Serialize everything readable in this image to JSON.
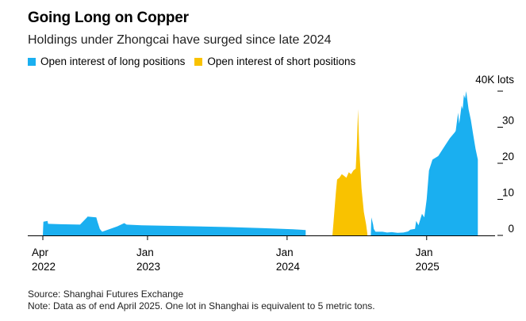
{
  "colors": {
    "long": "#1AAFF0",
    "short": "#F9C200",
    "axis": "#000000"
  },
  "chart_data": {
    "type": "area",
    "title": "Going Long on Copper",
    "subtitle": "Holdings under Zhongcai have surged since late 2024",
    "xlabel": "",
    "ylabel": "40K lots",
    "ylim": [
      0,
      40
    ],
    "yticks": [
      0,
      10,
      20,
      30
    ],
    "ytick_top_label": "40K lots",
    "xticks": [
      {
        "month": 0,
        "line1": "Apr",
        "line2": "2022"
      },
      {
        "month": 9,
        "line1": "Jan",
        "line2": "2023"
      },
      {
        "month": 21,
        "line1": "Jan",
        "line2": "2024"
      },
      {
        "month": 33,
        "line1": "Jan",
        "line2": "2025"
      }
    ],
    "x_unit": "months since Apr 2022",
    "series": [
      {
        "name": "Open interest of long positions",
        "x": [
          0.0,
          0.05,
          0.4,
          0.45,
          1.5,
          3.2,
          3.8,
          3.85,
          4.6,
          4.7,
          4.9,
          5.1,
          5.8,
          6.4,
          7.0,
          7.2,
          8.5,
          12.0,
          16.0,
          19.0,
          21.5,
          22.6,
          22.6
        ],
        "y": [
          0,
          3.8,
          4.0,
          3.2,
          3.1,
          3.0,
          5.0,
          5.2,
          5.0,
          3.8,
          1.8,
          1.0,
          1.8,
          2.5,
          3.4,
          3.0,
          2.8,
          2.6,
          2.3,
          2.0,
          1.7,
          1.5,
          0
        ]
      },
      {
        "name": "Open interest of long positions",
        "x": [
          28.2,
          28.25,
          28.4,
          28.45,
          28.6,
          28.8,
          29.2,
          29.6,
          30.0,
          30.5,
          31.0,
          31.4,
          31.6,
          32.0,
          32.1,
          32.3,
          32.6,
          32.8,
          33.0,
          33.2,
          33.5,
          34.0,
          34.6,
          35.0,
          35.4,
          35.5,
          35.7,
          35.8,
          36.0,
          36.1,
          36.2,
          36.3,
          36.4,
          36.6,
          36.8,
          37.0,
          37.2,
          37.4,
          37.4
        ],
        "y": [
          0,
          5.0,
          3.0,
          1.8,
          1.0,
          1.0,
          1.0,
          0.8,
          0.9,
          0.7,
          0.8,
          1.1,
          1.6,
          1.8,
          4.0,
          2.8,
          6.0,
          5.0,
          10.0,
          18.0,
          21.0,
          22.0,
          25.0,
          27.0,
          28.5,
          29.0,
          34.0,
          31.0,
          36.0,
          35.0,
          39.0,
          38.0,
          40.0,
          35.0,
          32.0,
          28.0,
          24.0,
          21.0,
          0
        ]
      },
      {
        "name": "Open interest of short positions",
        "x": [
          24.9,
          25.0,
          25.2,
          25.3,
          25.5,
          25.7,
          25.9,
          26.1,
          26.3,
          26.5,
          26.7,
          26.9,
          27.0,
          27.1,
          27.2,
          27.4,
          27.6,
          27.8,
          27.9,
          27.9
        ],
        "y": [
          0,
          4.0,
          12.0,
          15.5,
          16.0,
          17.0,
          16.5,
          16.0,
          17.5,
          17.0,
          18.0,
          18.5,
          25.0,
          35.0,
          24.0,
          13.0,
          6.5,
          3.0,
          0.5,
          0
        ]
      }
    ]
  },
  "legend": {
    "long_label": "Open interest of long positions",
    "short_label": "Open interest of short positions"
  },
  "footer": {
    "source": "Source: Shanghai Futures Exchange",
    "note": "Note: Data as of end April 2025. One lot in Shanghai is equivalent to 5 metric tons."
  }
}
